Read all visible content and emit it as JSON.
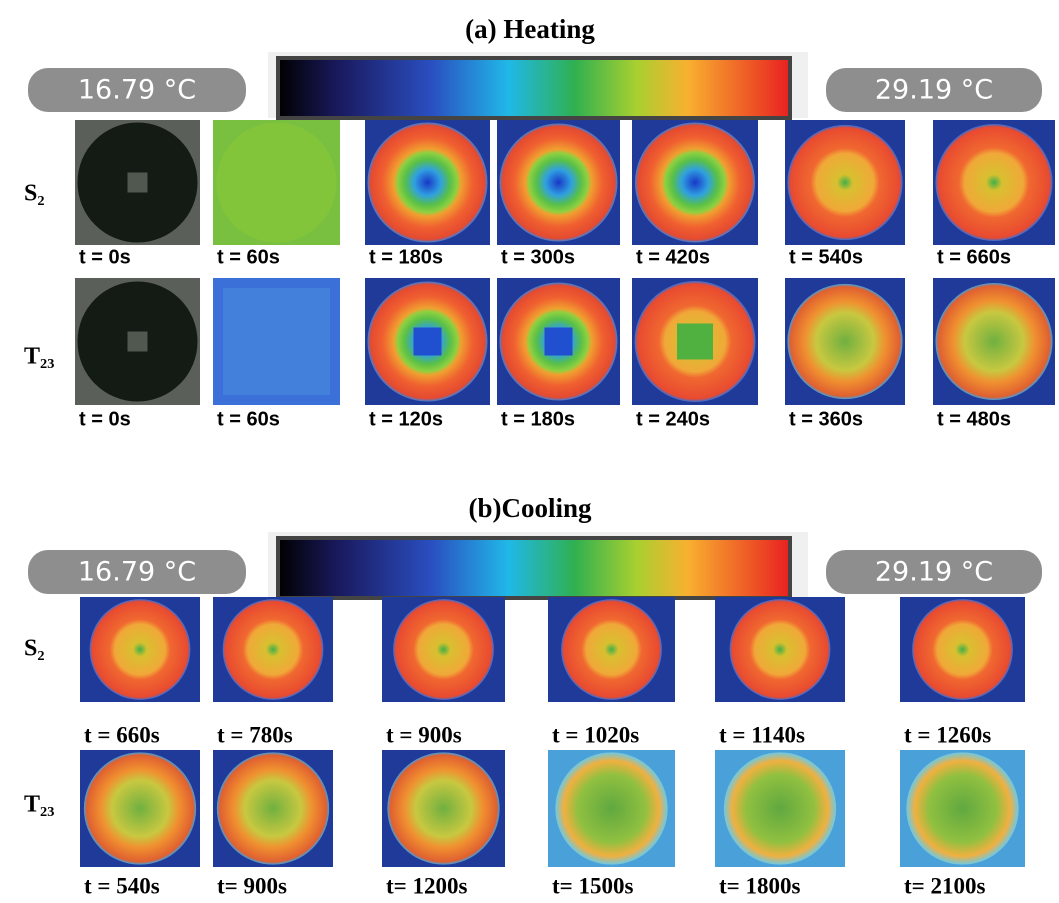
{
  "panels": [
    {
      "title": "(a)  Heating",
      "scale_min": "16.79 °C",
      "scale_max": "29.19 °C",
      "rows": [
        {
          "label": "S₂",
          "times": [
            "t = 0s",
            "t = 60s",
            "t = 180s",
            "t = 300s",
            "t = 420s",
            "t = 540s",
            "t = 660s"
          ]
        },
        {
          "label": "T₂₃",
          "times": [
            "t = 0s",
            "t = 60s",
            "t = 120s",
            "t = 180s",
            "t = 240s",
            "t = 360s",
            "t = 480s"
          ]
        }
      ]
    },
    {
      "title": "(b)Cooling",
      "scale_min": "16.79 °C",
      "scale_max": "29.19 °C",
      "rows": [
        {
          "label": "S₂",
          "times": [
            "t = 660s",
            "t = 780s",
            "t = 900s",
            "t = 1020s",
            "t = 1140s",
            "t = 1260s"
          ]
        },
        {
          "label": "T₂₃",
          "times": [
            "t = 540s",
            "t= 900s",
            "t= 1200s",
            "t= 1500s",
            "t= 1800s",
            "t= 2100s"
          ]
        }
      ]
    }
  ]
}
